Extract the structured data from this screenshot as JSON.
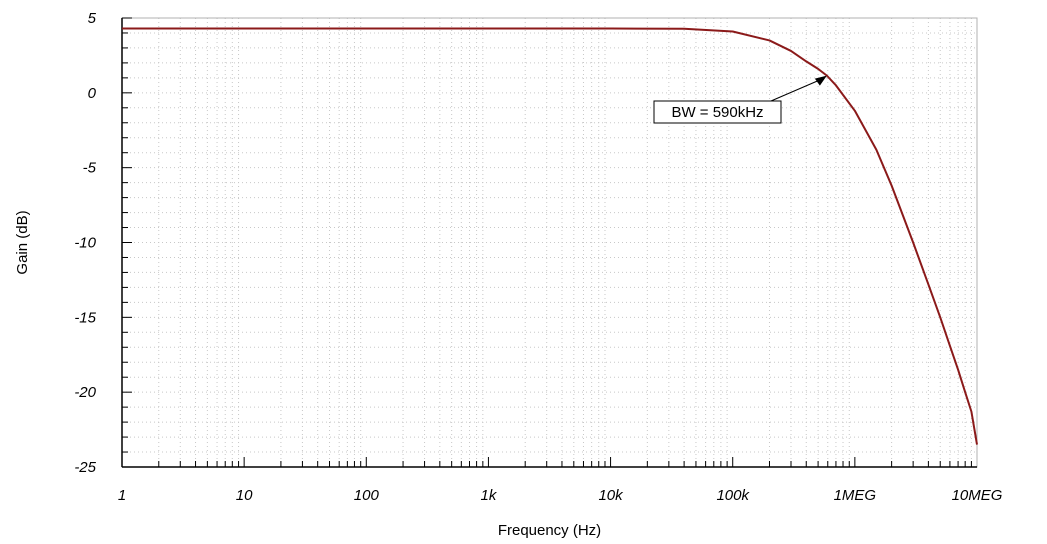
{
  "chart_data": {
    "type": "line",
    "title": "",
    "xlabel": "Frequency (Hz)",
    "ylabel": "Gain (dB)",
    "x_scale": "log",
    "xlim": [
      1,
      10000000
    ],
    "ylim": [
      -25,
      5
    ],
    "grid": true,
    "x_ticks": [
      {
        "value": 1,
        "label": "1"
      },
      {
        "value": 10,
        "label": "10"
      },
      {
        "value": 100,
        "label": "100"
      },
      {
        "value": 1000,
        "label": "1k"
      },
      {
        "value": 10000,
        "label": "10k"
      },
      {
        "value": 100000,
        "label": "100k"
      },
      {
        "value": 1000000,
        "label": "1MEG"
      },
      {
        "value": 10000000,
        "label": "10MEG"
      }
    ],
    "y_ticks": [
      {
        "value": 5,
        "label": "5"
      },
      {
        "value": 0,
        "label": "0"
      },
      {
        "value": -5,
        "label": "-5"
      },
      {
        "value": -10,
        "label": "-10"
      },
      {
        "value": -15,
        "label": "-15"
      },
      {
        "value": -20,
        "label": "-20"
      },
      {
        "value": -25,
        "label": "-25"
      }
    ],
    "series": [
      {
        "color": "#8b1a1a",
        "points": [
          [
            1,
            4.3
          ],
          [
            10,
            4.3
          ],
          [
            100,
            4.3
          ],
          [
            1000,
            4.3
          ],
          [
            10000,
            4.3
          ],
          [
            40000,
            4.28
          ],
          [
            100000,
            4.1
          ],
          [
            200000,
            3.5
          ],
          [
            300000,
            2.8
          ],
          [
            400000,
            2.1
          ],
          [
            500000,
            1.6
          ],
          [
            590000,
            1.15
          ],
          [
            700000,
            0.5
          ],
          [
            1000000,
            -1.2
          ],
          [
            1500000,
            -3.8
          ],
          [
            2000000,
            -6.2
          ],
          [
            3000000,
            -10.0
          ],
          [
            4000000,
            -12.8
          ],
          [
            5000000,
            -15.0
          ],
          [
            6000000,
            -16.9
          ],
          [
            7000000,
            -18.5
          ],
          [
            8000000,
            -20.0
          ],
          [
            9000000,
            -21.3
          ],
          [
            10000000,
            -23.5
          ]
        ]
      }
    ],
    "annotations": [
      {
        "text": "BW = 590kHz",
        "x": 590000,
        "y": 1.15
      }
    ]
  }
}
